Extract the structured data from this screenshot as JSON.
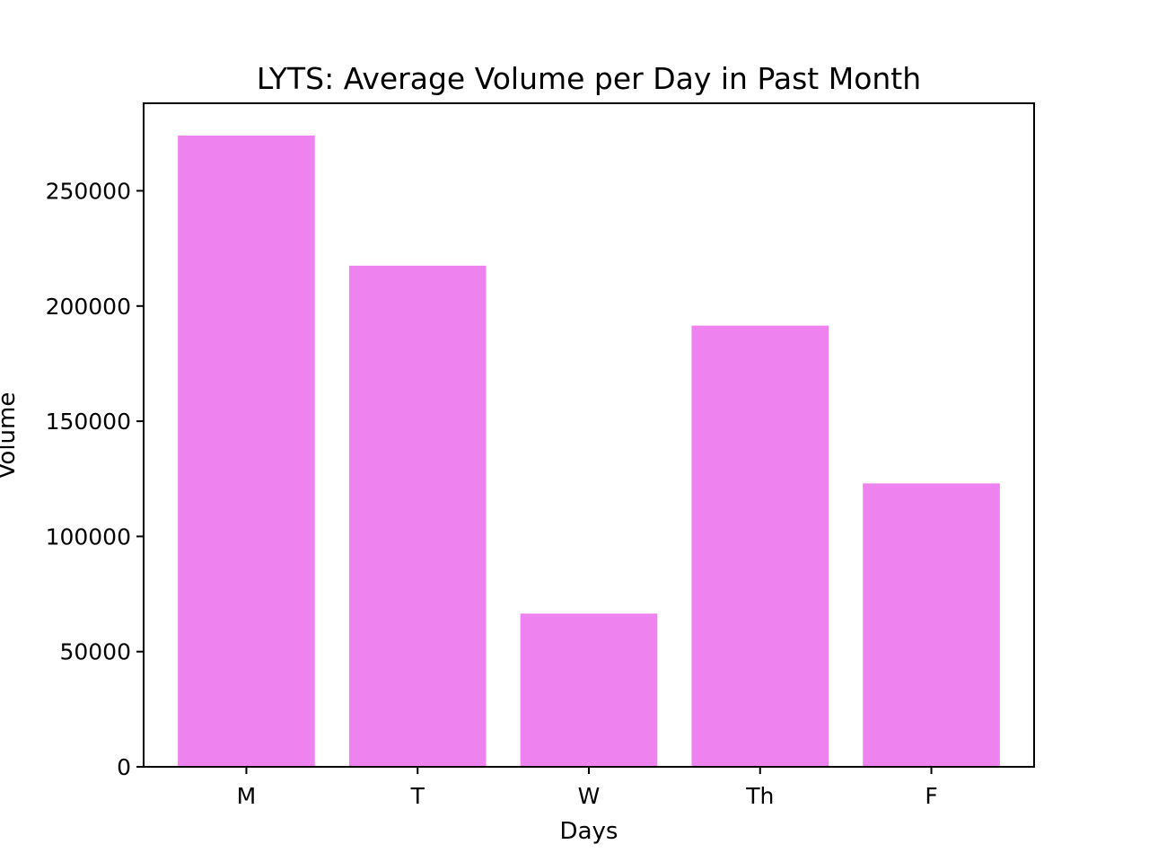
{
  "chart_data": {
    "type": "bar",
    "title": "LYTS: Average Volume per Day in Past Month",
    "xlabel": "Days",
    "ylabel": "Volume",
    "categories": [
      "M",
      "T",
      "W",
      "Th",
      "F"
    ],
    "values": [
      274000,
      217500,
      66500,
      191500,
      123000
    ],
    "ylim": [
      0,
      288000
    ],
    "yticks": [
      0,
      50000,
      100000,
      150000,
      200000,
      250000
    ],
    "ytick_labels": [
      "0",
      "50000",
      "100000",
      "150000",
      "200000",
      "250000"
    ],
    "bar_color": "#ee82ee",
    "grid": false,
    "legend": "none"
  }
}
